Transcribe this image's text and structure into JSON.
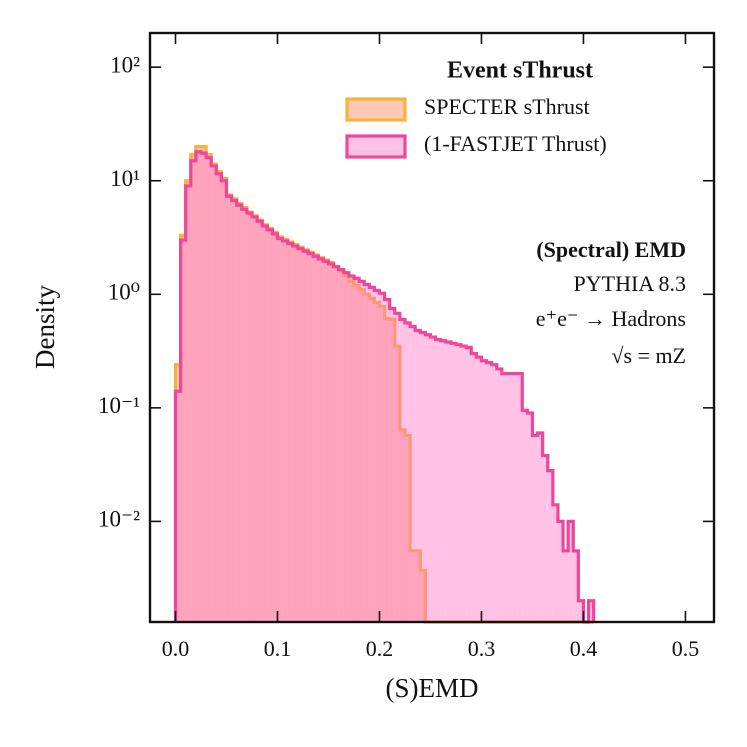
{
  "chart_data": {
    "type": "histogram",
    "legend_title": "Event sThrust",
    "xlabel": "(S)EMD",
    "ylabel": "Density",
    "yscale": "log",
    "legend": "upper right",
    "xlim": [
      -0.025,
      0.528
    ],
    "ylim": [
      0.0013,
      200
    ],
    "xticks": [
      {
        "value": 0,
        "label": "0.0"
      },
      0.1,
      0.2,
      0.3,
      0.4,
      0.5
    ],
    "yticks": [
      {
        "value": 0.01,
        "label": "10⁻²"
      },
      {
        "value": 0.1,
        "label": "10⁻¹"
      },
      {
        "value": 1,
        "label": "10⁰"
      },
      {
        "value": 10,
        "label": "10¹"
      },
      {
        "value": 100,
        "label": "10²"
      }
    ],
    "annotations": [
      "(Spectral) EMD",
      "PYTHIA 8.3",
      "e⁺e⁻ → Hadrons",
      "√s = mZ"
    ],
    "bins": [
      0,
      0.005,
      0.01,
      0.015,
      0.02,
      0.025,
      0.03,
      0.035,
      0.04,
      0.045,
      0.05,
      0.055,
      0.06,
      0.065,
      0.07,
      0.075,
      0.08,
      0.085,
      0.09,
      0.095,
      0.1,
      0.105,
      0.11,
      0.115,
      0.12,
      0.125,
      0.13,
      0.135,
      0.14,
      0.145,
      0.15,
      0.155,
      0.16,
      0.165,
      0.17,
      0.175,
      0.18,
      0.185,
      0.19,
      0.195,
      0.2,
      0.205,
      0.21,
      0.215,
      0.22,
      0.225,
      0.23,
      0.235,
      0.24,
      0.245,
      0.25,
      0.255,
      0.26,
      0.265,
      0.27,
      0.275,
      0.28,
      0.285,
      0.29,
      0.295,
      0.3,
      0.305,
      0.31,
      0.315,
      0.32,
      0.325,
      0.33,
      0.335,
      0.34,
      0.345,
      0.35,
      0.355,
      0.36,
      0.365,
      0.37,
      0.375,
      0.38,
      0.385,
      0.39,
      0.395,
      0.4,
      0.405,
      0.41
    ],
    "series": [
      {
        "name": "SPECTER sThrust",
        "color": "#f8b23a",
        "fill": "rgba(255,130,90,0.45)",
        "values": [
          0.24,
          3.3,
          10,
          17,
          20,
          20,
          17,
          14,
          12,
          10.5,
          7.5,
          6.9,
          6.3,
          5.8,
          5.3,
          4.9,
          4.5,
          4.1,
          3.8,
          3.5,
          3.2,
          3.04,
          2.88,
          2.74,
          2.6,
          2.46,
          2.34,
          2.22,
          2.1,
          2.0,
          1.9,
          1.75,
          1.6,
          1.45,
          1.3,
          1.2,
          1.1,
          1.0,
          0.92,
          0.85,
          0.78,
          0.61,
          0.6,
          0.35,
          0.064,
          0.057,
          0.0055,
          0.0055,
          0.0037,
          0,
          0,
          0,
          0,
          0,
          0,
          0,
          0,
          0,
          0,
          0,
          0,
          0,
          0,
          0,
          0,
          0,
          0,
          0,
          0,
          0,
          0,
          0,
          0,
          0,
          0,
          0,
          0,
          0,
          0,
          0,
          0,
          0
        ]
      },
      {
        "name": "(1-FASTJET Thrust)",
        "color": "#f0469a",
        "fill": "rgba(255,120,200,0.45)",
        "values": [
          0.14,
          3,
          9,
          15,
          18,
          17.5,
          16,
          13.5,
          11.5,
          10,
          7.3,
          6.7,
          6.1,
          5.6,
          5.2,
          4.8,
          4.4,
          4.0,
          3.7,
          3.4,
          3.1,
          2.95,
          2.8,
          2.66,
          2.52,
          2.4,
          2.28,
          2.16,
          2.05,
          1.95,
          1.85,
          1.75,
          1.65,
          1.55,
          1.45,
          1.38,
          1.3,
          1.22,
          1.15,
          1.08,
          1.02,
          0.9,
          0.75,
          0.68,
          0.6,
          0.56,
          0.52,
          0.48,
          0.46,
          0.44,
          0.42,
          0.4,
          0.39,
          0.38,
          0.37,
          0.36,
          0.35,
          0.34,
          0.3,
          0.28,
          0.26,
          0.25,
          0.24,
          0.22,
          0.2,
          0.2,
          0.2,
          0.2,
          0.095,
          0.09,
          0.057,
          0.06,
          0.038,
          0.028,
          0.014,
          0.01,
          0.0055,
          0.01,
          0.0055,
          0.002,
          0,
          0.002
        ]
      }
    ]
  }
}
